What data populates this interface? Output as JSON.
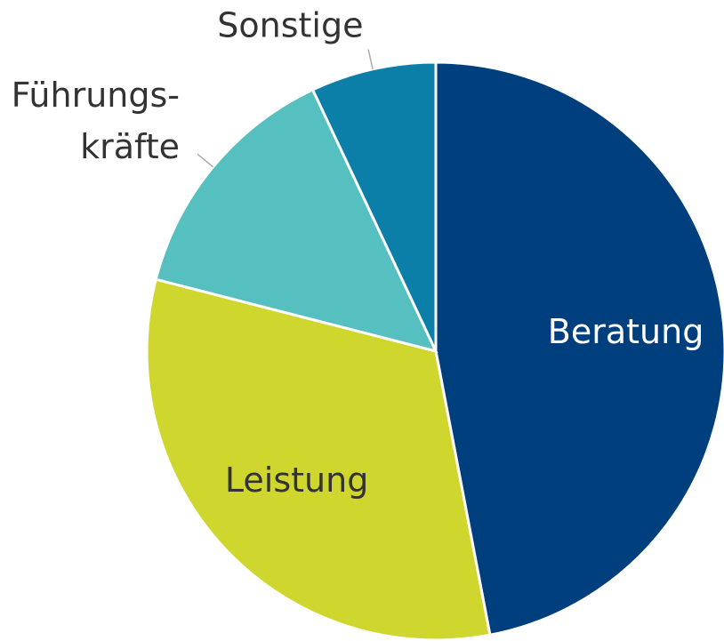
{
  "chart_data": {
    "type": "pie",
    "categories": [
      "Beratung",
      "Leistung",
      "Führungs-\nkräfte",
      "Sonstige"
    ],
    "values": [
      47,
      32,
      14,
      7
    ],
    "colors": [
      "#003f7d",
      "#cfd72e",
      "#56bfc0",
      "#0b7fa7"
    ]
  }
}
